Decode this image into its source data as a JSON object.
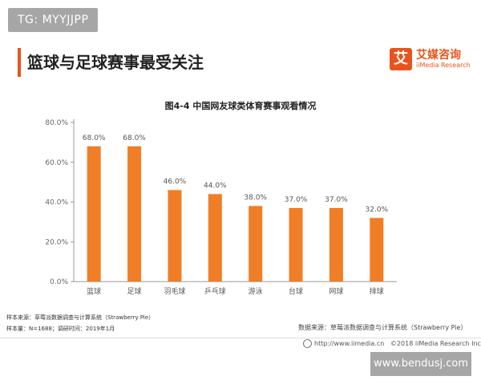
{
  "watermark_top": "TG: MYYJJPP",
  "heading": "篮球与足球赛事最受关注",
  "logo": {
    "cn": "艾媒咨询",
    "en": "iiMedia Research",
    "mark": "艾"
  },
  "chart_data": {
    "type": "bar",
    "title": "图4-4 中国网友球类体育赛事观看情况",
    "categories": [
      "篮球",
      "足球",
      "羽毛球",
      "乒乓球",
      "游泳",
      "台球",
      "网球",
      "排球"
    ],
    "values": [
      68.0,
      68.0,
      46.0,
      44.0,
      38.0,
      37.0,
      37.0,
      32.0
    ],
    "data_labels": [
      "68.0%",
      "68.0%",
      "46.0%",
      "44.0%",
      "38.0%",
      "37.0%",
      "37.0%",
      "32.0%"
    ],
    "ylim": [
      0,
      80
    ],
    "yticks": [
      "0.0%",
      "20.0%",
      "40.0%",
      "60.0%",
      "80.0%"
    ],
    "grid": false,
    "bar_color": "#f07e26"
  },
  "source_left_1": "样本来源：草莓派数据调查与计算系统（Strawberry Pie）",
  "source_left_2": "样本量：N=1688；调研时间：2019年1月",
  "source_right": "数据来源：草莓派数据调查与计算系统（Strawberry Pie）",
  "footer_url": "http://www.iimedia.cn",
  "footer_copy": "©2018  iiMedia Research  Inc",
  "watermark_bottom": "www.bendusj.com"
}
